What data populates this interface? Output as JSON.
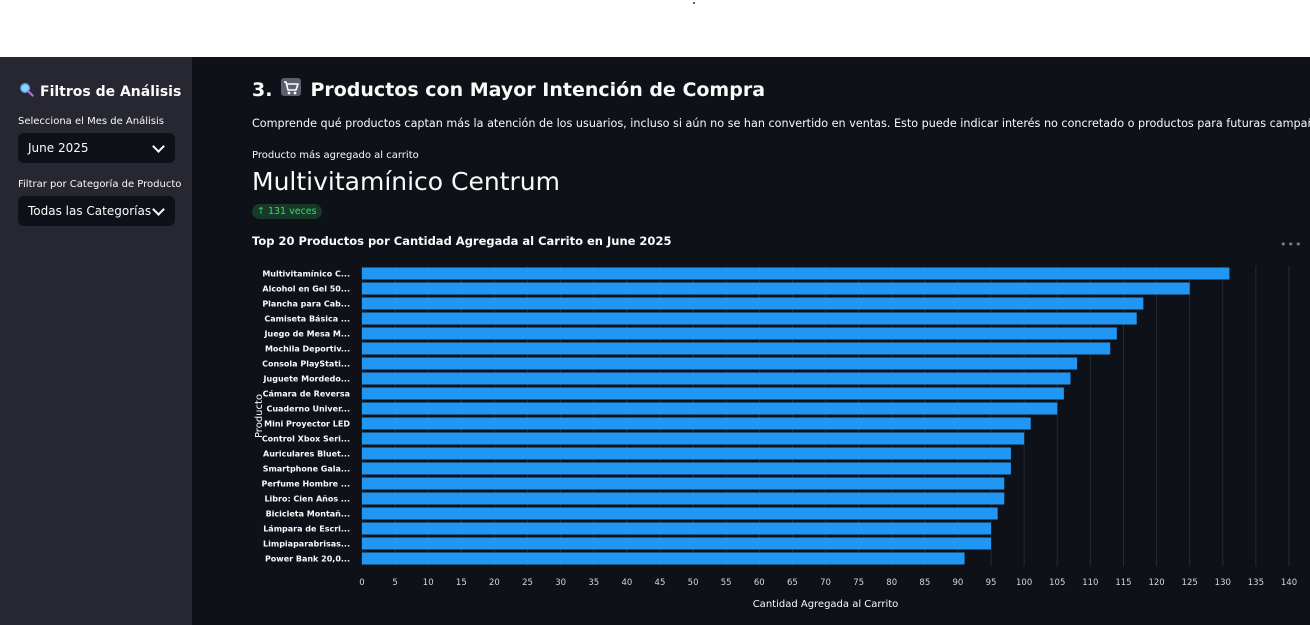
{
  "sidebar": {
    "title": "Filtros de Análisis",
    "title_icon": "magnifier-icon",
    "month_label": "Selecciona el Mes de Análisis",
    "month_value": "June 2025",
    "category_label": "Filtrar por Categoría de Producto",
    "category_value": "Todas las Categorías"
  },
  "main": {
    "heading": "3. 🛒 Productos con Mayor Intención de Compra",
    "heading_prefix": "3.",
    "heading_text": "Productos con Mayor Intención de Compra",
    "heading_icon": "shopping-cart-icon",
    "description": "Comprende qué productos captan más la atención de los usuarios, incluso si aún no se han convertido en ventas. Esto puede indicar interés no concretado o productos para futuras campañas.",
    "metric_label": "Producto más agregado al carrito",
    "metric_value": "Multivitamínico Centrum",
    "metric_delta": "131 veces",
    "chart_title": "Top 20 Productos por Cantidad Agregada al Carrito en June 2025",
    "more_icon": "more-options-icon"
  },
  "colors": {
    "bar": "#2196f3",
    "sidebar_bg": "#262730",
    "main_bg": "#0e1117",
    "delta_green": "#3dd56d"
  },
  "chart_data": {
    "type": "bar",
    "orientation": "horizontal",
    "title": "Top 20 Productos por Cantidad Agregada al Carrito en June 2025",
    "xlabel": "Cantidad Agregada al Carrito",
    "ylabel": "Producto",
    "xlim": [
      0,
      140
    ],
    "xticks": [
      0,
      5,
      10,
      15,
      20,
      25,
      30,
      35,
      40,
      45,
      50,
      55,
      60,
      65,
      70,
      75,
      80,
      85,
      90,
      95,
      100,
      105,
      110,
      115,
      120,
      125,
      130,
      135,
      140
    ],
    "grid": true,
    "categories": [
      "Multivitamínico C...",
      "Alcohol en Gel 50...",
      "Plancha para Cab...",
      "Camiseta Básica ...",
      "Juego de Mesa M...",
      "Mochila Deportiv...",
      "Consola PlayStati...",
      "Juguete Mordedo...",
      "Cámara de Reversa",
      "Cuaderno Univer...",
      "Mini Proyector LED",
      "Control Xbox Seri...",
      "Auriculares Bluet...",
      "Smartphone Gala...",
      "Perfume Hombre ...",
      "Libro: Cien Años ...",
      "Bicicleta Montañ...",
      "Lámpara de Escri...",
      "Limpiaparabrisas...",
      "Power Bank 20,0..."
    ],
    "values": [
      131,
      125,
      118,
      117,
      114,
      113,
      108,
      107,
      106,
      105,
      101,
      100,
      98,
      98,
      97,
      97,
      96,
      95,
      95,
      91
    ]
  }
}
